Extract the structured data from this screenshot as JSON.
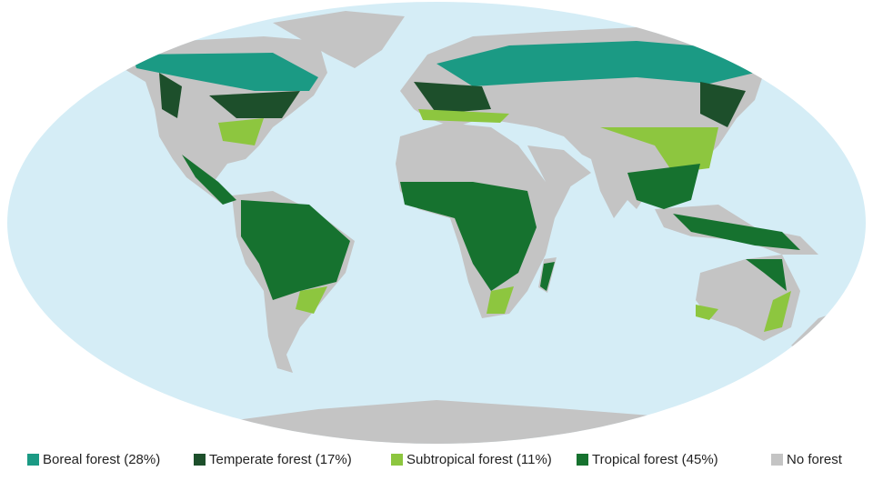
{
  "legend": [
    {
      "label": "Boreal forest (28%)",
      "color": "#1b9a84"
    },
    {
      "label": "Temperate forest (17%)",
      "color": "#1d4f2b"
    },
    {
      "label": "Subtropical forest (11%)",
      "color": "#8dc63f"
    },
    {
      "label": "Tropical forest (45%)",
      "color": "#16722f"
    },
    {
      "label": "No forest",
      "color": "#c4c4c4"
    }
  ]
}
